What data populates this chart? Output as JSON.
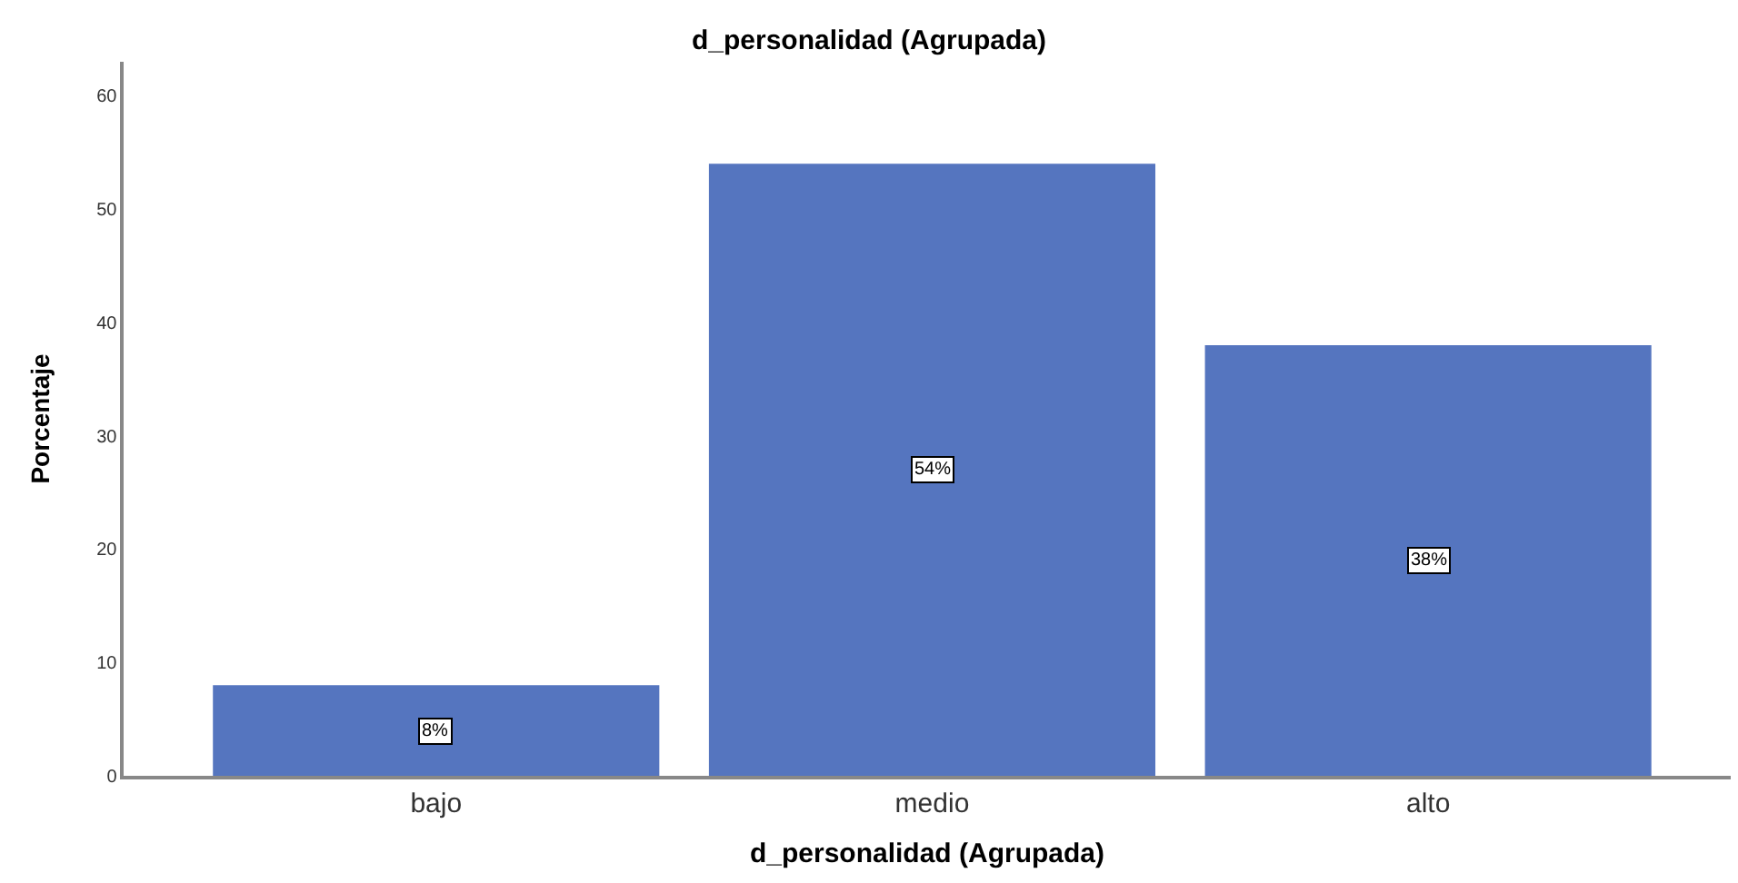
{
  "chart_data": {
    "type": "bar",
    "title": "d_personalidad (Agrupada)",
    "xlabel": "d_personalidad (Agrupada)",
    "ylabel": "Porcentaje",
    "categories": [
      "bajo",
      "medio",
      "alto"
    ],
    "values": [
      8,
      54,
      38
    ],
    "value_labels": [
      "8%",
      "54%",
      "38%"
    ],
    "color": "#5575bf",
    "ylim": [
      0,
      63
    ],
    "yticks": [
      0,
      10,
      20,
      30,
      40,
      50,
      60
    ]
  }
}
